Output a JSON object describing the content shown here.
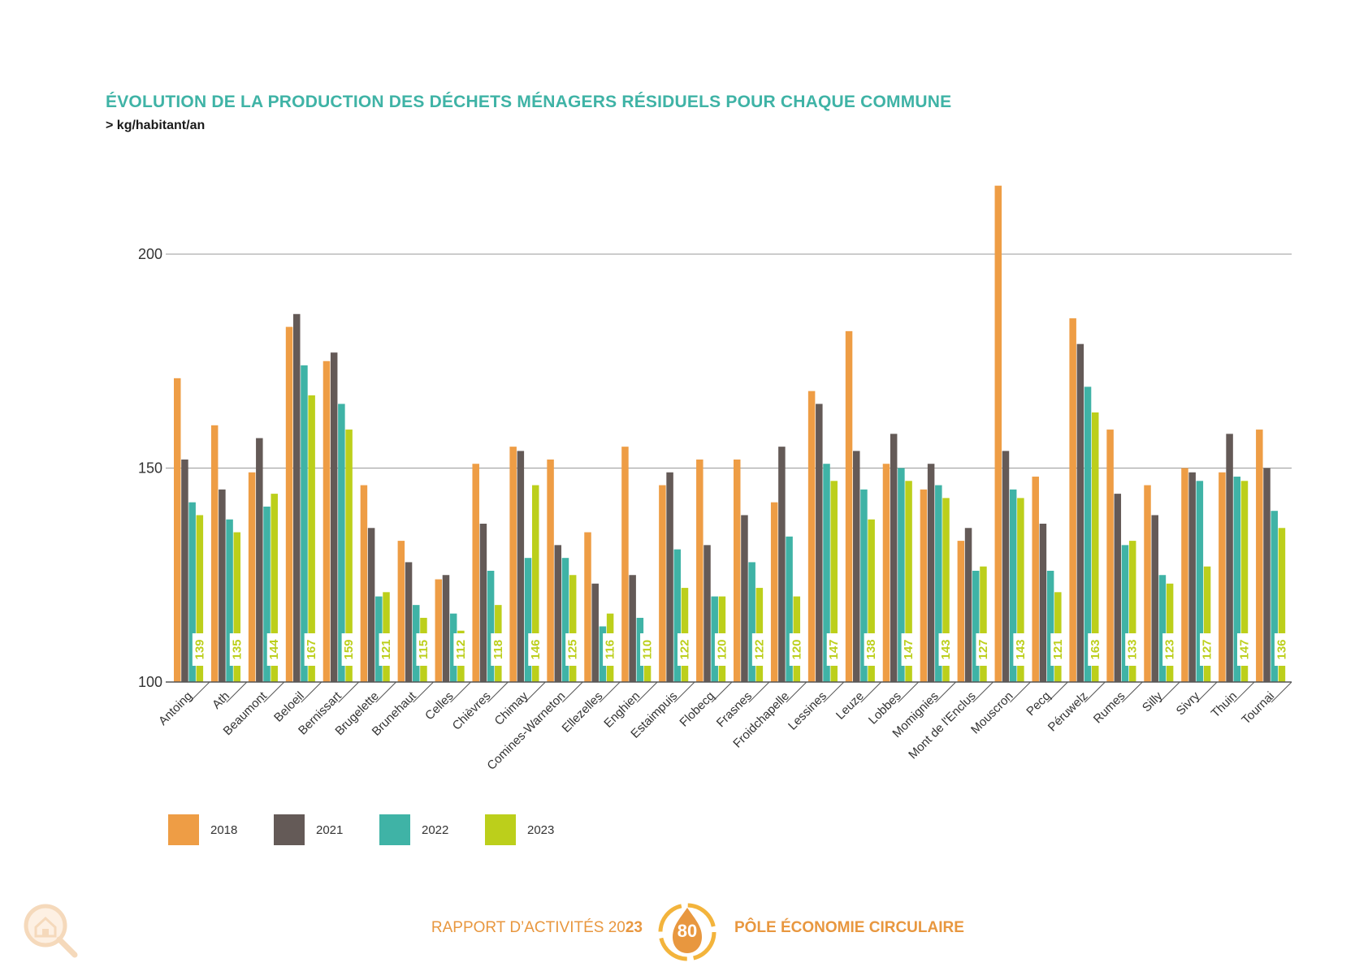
{
  "header": {
    "title": "ÉVOLUTION DE LA PRODUCTION DES DÉCHETS MÉNAGERS RÉSIDUELS POUR CHAQUE COMMUNE",
    "subtitle": "> kg/habitant/an"
  },
  "colors": {
    "2018": "#ee9d45",
    "2021": "#645a57",
    "2022": "#3fb3a6",
    "2023": "#bccf1b",
    "title": "#3fb3a6",
    "footer": "#e8973f"
  },
  "chart_data": {
    "type": "bar",
    "title": "ÉVOLUTION DE LA PRODUCTION DES DÉCHETS MÉNAGERS RÉSIDUELS POUR CHAQUE COMMUNE",
    "ylabel": "kg/habitant/an",
    "ylim": [
      100,
      216
    ],
    "yticks": [
      100,
      150,
      200
    ],
    "grid": true,
    "legend_position": "bottom-left",
    "categories": [
      "Antoing",
      "Ath",
      "Beaumont",
      "Beloeil",
      "Bernissart",
      "Brugelette",
      "Brunehaut",
      "Celles",
      "Chièvres",
      "Chimay",
      "Comines-Warneton",
      "Ellezelles",
      "Enghien",
      "Estaimpuis",
      "Flobecq",
      "Frasnes",
      "Froidchapelle",
      "Lessines",
      "Leuze",
      "Lobbes",
      "Momignies",
      "Mont de l'Enclus",
      "Mouscron",
      "Pecq",
      "Péruwelz",
      "Rumes",
      "Silly",
      "Sivry",
      "Thuin",
      "Tournai"
    ],
    "series": [
      {
        "name": "2018",
        "values": [
          171,
          160,
          149,
          183,
          175,
          146,
          133,
          124,
          151,
          155,
          152,
          135,
          155,
          146,
          152,
          152,
          142,
          168,
          182,
          151,
          145,
          133,
          216,
          148,
          185,
          159,
          146,
          150,
          149,
          159
        ]
      },
      {
        "name": "2021",
        "values": [
          152,
          145,
          157,
          186,
          177,
          136,
          128,
          125,
          137,
          154,
          132,
          123,
          125,
          149,
          132,
          139,
          155,
          165,
          154,
          158,
          151,
          136,
          154,
          137,
          179,
          144,
          139,
          149,
          158,
          150
        ]
      },
      {
        "name": "2022",
        "values": [
          142,
          138,
          141,
          174,
          165,
          120,
          118,
          116,
          126,
          129,
          129,
          113,
          115,
          131,
          120,
          128,
          134,
          151,
          145,
          150,
          146,
          126,
          145,
          126,
          169,
          132,
          125,
          147,
          148,
          140
        ]
      },
      {
        "name": "2023",
        "values": [
          139,
          135,
          144,
          167,
          159,
          121,
          115,
          112,
          118,
          146,
          125,
          116,
          110,
          122,
          120,
          122,
          120,
          147,
          138,
          147,
          143,
          127,
          143,
          121,
          163,
          133,
          123,
          127,
          147,
          136
        ]
      }
    ],
    "data_labels_series": "2023"
  },
  "legend": [
    {
      "label": "2018",
      "color": "#ee9d45"
    },
    {
      "label": "2021",
      "color": "#645a57"
    },
    {
      "label": "2022",
      "color": "#3fb3a6"
    },
    {
      "label": "2023",
      "color": "#bccf1b"
    }
  ],
  "footer": {
    "left_text": "RAPPORT D’ACTIVITÉS 20",
    "left_year_suffix": "23",
    "page_number": "80",
    "right_text": "PÔLE ÉCONOMIE CIRCULAIRE"
  },
  "icons": {
    "corner": "house-search-icon",
    "page_badge": "drop-arrows-icon"
  }
}
